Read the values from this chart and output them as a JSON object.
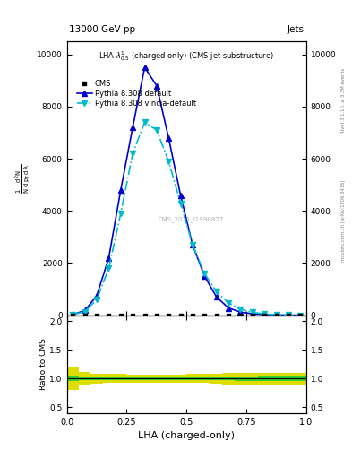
{
  "title_top": "13000 GeV pp",
  "title_right": "Jets",
  "plot_title": "LHA $\\lambda^{1}_{0.5}$ (charged only) (CMS jet substructure)",
  "xlabel": "LHA (charged-only)",
  "ylabel_ratio": "Ratio to CMS",
  "watermark": "CMS_2021_I1990827",
  "rivet_label": "Rivet 3.1.10, ≥ 3.3M events",
  "mcplots_label": "mcplots.cern.ch [arXiv:1306.3436]",
  "pythia_default_x": [
    0.025,
    0.075,
    0.125,
    0.175,
    0.225,
    0.275,
    0.325,
    0.375,
    0.425,
    0.475,
    0.525,
    0.575,
    0.625,
    0.675,
    0.725,
    0.775,
    0.825,
    0.875,
    0.925,
    0.975
  ],
  "pythia_default_y": [
    25,
    180,
    750,
    2200,
    4800,
    7200,
    9500,
    8800,
    6800,
    4600,
    2700,
    1500,
    700,
    280,
    120,
    55,
    25,
    10,
    4,
    1
  ],
  "pythia_vincia_x": [
    0.025,
    0.075,
    0.125,
    0.175,
    0.225,
    0.275,
    0.325,
    0.375,
    0.425,
    0.475,
    0.525,
    0.575,
    0.625,
    0.675,
    0.725,
    0.775,
    0.825,
    0.875,
    0.925,
    0.975
  ],
  "pythia_vincia_y": [
    20,
    140,
    600,
    1800,
    3900,
    6200,
    7400,
    7100,
    5900,
    4300,
    2700,
    1600,
    900,
    480,
    230,
    110,
    50,
    20,
    8,
    2
  ],
  "cms_data_x": [
    0.025,
    0.075,
    0.125,
    0.175,
    0.225,
    0.275,
    0.325,
    0.375,
    0.425,
    0.475,
    0.525,
    0.575,
    0.625,
    0.675,
    0.725,
    0.775,
    0.825,
    0.875,
    0.925,
    0.975
  ],
  "cms_data_y": [
    0,
    0,
    0,
    0,
    0,
    0,
    0,
    0,
    0,
    0,
    0,
    0,
    0,
    0,
    0,
    0,
    0,
    0,
    0,
    0
  ],
  "ratio_x_edges": [
    0.0,
    0.05,
    0.1,
    0.15,
    0.2,
    0.25,
    0.3,
    0.35,
    0.4,
    0.45,
    0.5,
    0.55,
    0.6,
    0.65,
    0.7,
    0.75,
    0.8,
    0.85,
    0.9,
    0.95,
    1.0
  ],
  "ratio_green_err": [
    0.05,
    0.03,
    0.025,
    0.025,
    0.025,
    0.025,
    0.025,
    0.025,
    0.025,
    0.025,
    0.03,
    0.03,
    0.03,
    0.03,
    0.04,
    0.04,
    0.05,
    0.05,
    0.05,
    0.05
  ],
  "ratio_yellow_err": [
    0.2,
    0.12,
    0.09,
    0.08,
    0.08,
    0.07,
    0.07,
    0.07,
    0.07,
    0.07,
    0.08,
    0.08,
    0.09,
    0.1,
    0.1,
    0.1,
    0.1,
    0.1,
    0.1,
    0.1
  ],
  "color_pythia_default": "#0000cc",
  "color_pythia_vincia": "#00bbcc",
  "color_cms": "#000000",
  "color_green_band": "#33cc33",
  "color_yellow_band": "#dddd00",
  "ylim_main": [
    0,
    10500
  ],
  "ylim_ratio": [
    0.4,
    2.1
  ],
  "xlim": [
    0,
    1
  ],
  "main_yticks": [
    0,
    2000,
    4000,
    6000,
    8000,
    10000
  ],
  "ratio_yticks": [
    0.5,
    1.0,
    1.5,
    2.0
  ],
  "xticks": [
    0.0,
    0.25,
    0.5,
    0.75,
    1.0
  ]
}
